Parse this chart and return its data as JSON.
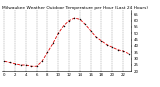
{
  "title": "Milwaukee Weather Outdoor Temperature per Hour (Last 24 Hours)",
  "hours": [
    0,
    1,
    2,
    3,
    4,
    5,
    6,
    7,
    8,
    9,
    10,
    11,
    12,
    13,
    14,
    15,
    16,
    17,
    18,
    19,
    20,
    21,
    22,
    23
  ],
  "temps": [
    28,
    27,
    26,
    25,
    25,
    24,
    24,
    28,
    35,
    42,
    50,
    56,
    60,
    62,
    61,
    57,
    52,
    47,
    44,
    41,
    39,
    37,
    36,
    34
  ],
  "ylim": [
    20,
    68
  ],
  "yticks": [
    20,
    25,
    30,
    35,
    40,
    45,
    50,
    55,
    60,
    65
  ],
  "line_color": "#dd0000",
  "marker_color": "#000000",
  "grid_color": "#888888",
  "bg_color": "#ffffff",
  "title_fontsize": 3.2,
  "tick_fontsize": 2.8
}
